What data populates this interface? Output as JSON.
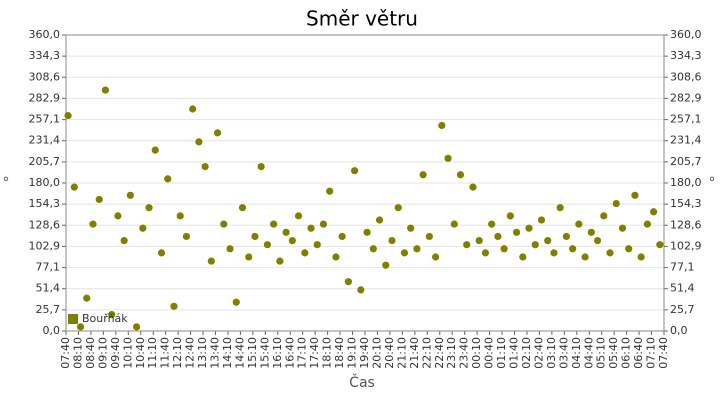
{
  "chart_data": {
    "type": "scatter",
    "title": "Směr větru",
    "x_label": "Čas",
    "y_label": "°",
    "grid": true,
    "legend": "bottom-left",
    "xticks": [
      "07:40",
      "08:10",
      "08:40",
      "09:10",
      "09:40",
      "10:10",
      "10:40",
      "11:10",
      "11:40",
      "12:10",
      "12:40",
      "13:10",
      "13:40",
      "14:10",
      "14:40",
      "15:10",
      "15:40",
      "16:10",
      "16:40",
      "17:10",
      "17:40",
      "18:10",
      "18:40",
      "19:10",
      "19:40",
      "20:10",
      "20:40",
      "21:10",
      "21:40",
      "22:10",
      "22:40",
      "23:10",
      "23:40",
      "00:10",
      "00:40",
      "01:10",
      "01:40",
      "02:10",
      "02:40",
      "03:10",
      "03:40",
      "04:10",
      "04:40",
      "05:10",
      "05:40",
      "06:10",
      "06:40",
      "07:10",
      "07:40"
    ],
    "ylim": [
      0,
      360
    ],
    "yticks": [
      {
        "value": 0,
        "label": "0,0"
      },
      {
        "value": 25.7,
        "label": "25,7"
      },
      {
        "value": 51.4,
        "label": "51,4"
      },
      {
        "value": 77.1,
        "label": "77,1"
      },
      {
        "value": 102.9,
        "label": "102,9"
      },
      {
        "value": 128.6,
        "label": "128,6"
      },
      {
        "value": 154.3,
        "label": "154,3"
      },
      {
        "value": 180,
        "label": "180,0"
      },
      {
        "value": 205.7,
        "label": "205,7"
      },
      {
        "value": 231.4,
        "label": "231,4"
      },
      {
        "value": 257.1,
        "label": "257,1"
      },
      {
        "value": 282.9,
        "label": "282,9"
      },
      {
        "value": 308.6,
        "label": "308,6"
      },
      {
        "value": 334.3,
        "label": "334,3"
      },
      {
        "value": 360,
        "label": "360,0"
      }
    ],
    "x": [
      "07:45",
      "08:00",
      "08:15",
      "08:30",
      "08:45",
      "09:00",
      "09:15",
      "09:30",
      "09:45",
      "10:00",
      "10:15",
      "10:30",
      "10:45",
      "11:00",
      "11:15",
      "11:30",
      "11:45",
      "12:00",
      "12:15",
      "12:30",
      "12:45",
      "13:00",
      "13:15",
      "13:30",
      "13:45",
      "14:00",
      "14:15",
      "14:30",
      "14:45",
      "15:00",
      "15:15",
      "15:30",
      "15:45",
      "16:00",
      "16:15",
      "16:30",
      "16:45",
      "17:00",
      "17:15",
      "17:30",
      "17:45",
      "18:00",
      "18:15",
      "18:30",
      "18:45",
      "19:00",
      "19:15",
      "19:30",
      "19:45",
      "20:00",
      "20:15",
      "20:30",
      "20:45",
      "21:00",
      "21:15",
      "21:30",
      "21:45",
      "22:00",
      "22:15",
      "22:30",
      "22:45",
      "23:00",
      "23:15",
      "23:30",
      "23:45",
      "00:00",
      "00:15",
      "00:30",
      "00:45",
      "01:00",
      "01:15",
      "01:30",
      "01:45",
      "02:00",
      "02:15",
      "02:30",
      "02:45",
      "03:00",
      "03:15",
      "03:30",
      "03:45",
      "04:00",
      "04:15",
      "04:30",
      "04:45",
      "05:00",
      "05:15",
      "05:30",
      "05:45",
      "06:00",
      "06:15",
      "06:30",
      "06:45",
      "07:00",
      "07:15",
      "07:30"
    ],
    "series": [
      {
        "name": "Bouřňák",
        "color": "#808000",
        "values": [
          262,
          175,
          5,
          40,
          130,
          160,
          293,
          20,
          140,
          110,
          165,
          5,
          125,
          150,
          220,
          95,
          185,
          30,
          140,
          115,
          270,
          230,
          200,
          85,
          241,
          130,
          100,
          35,
          150,
          90,
          115,
          200,
          105,
          130,
          85,
          120,
          110,
          140,
          95,
          125,
          105,
          130,
          170,
          90,
          115,
          60,
          195,
          50,
          120,
          100,
          135,
          80,
          110,
          150,
          95,
          125,
          100,
          190,
          115,
          90,
          250,
          210,
          130,
          190,
          105,
          175,
          110,
          95,
          130,
          115,
          100,
          140,
          120,
          90,
          125,
          105,
          135,
          110,
          95,
          150,
          115,
          100,
          130,
          90,
          120,
          110,
          140,
          95,
          155,
          125,
          100,
          165,
          90,
          130,
          145,
          105
        ]
      }
    ]
  }
}
